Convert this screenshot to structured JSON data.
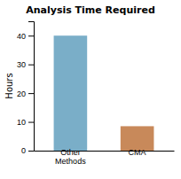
{
  "chart_data": {
    "type": "bar",
    "title": "Analysis Time Required",
    "categories": [
      "Other\nMethods",
      "CMA"
    ],
    "values": [
      40,
      8.5
    ],
    "colors": [
      "#7aaec8",
      "#c8895a"
    ],
    "ylabel": "Hours",
    "ylim": [
      0,
      45
    ],
    "yticks": [
      0,
      10,
      20,
      30,
      40
    ],
    "grid": false
  }
}
